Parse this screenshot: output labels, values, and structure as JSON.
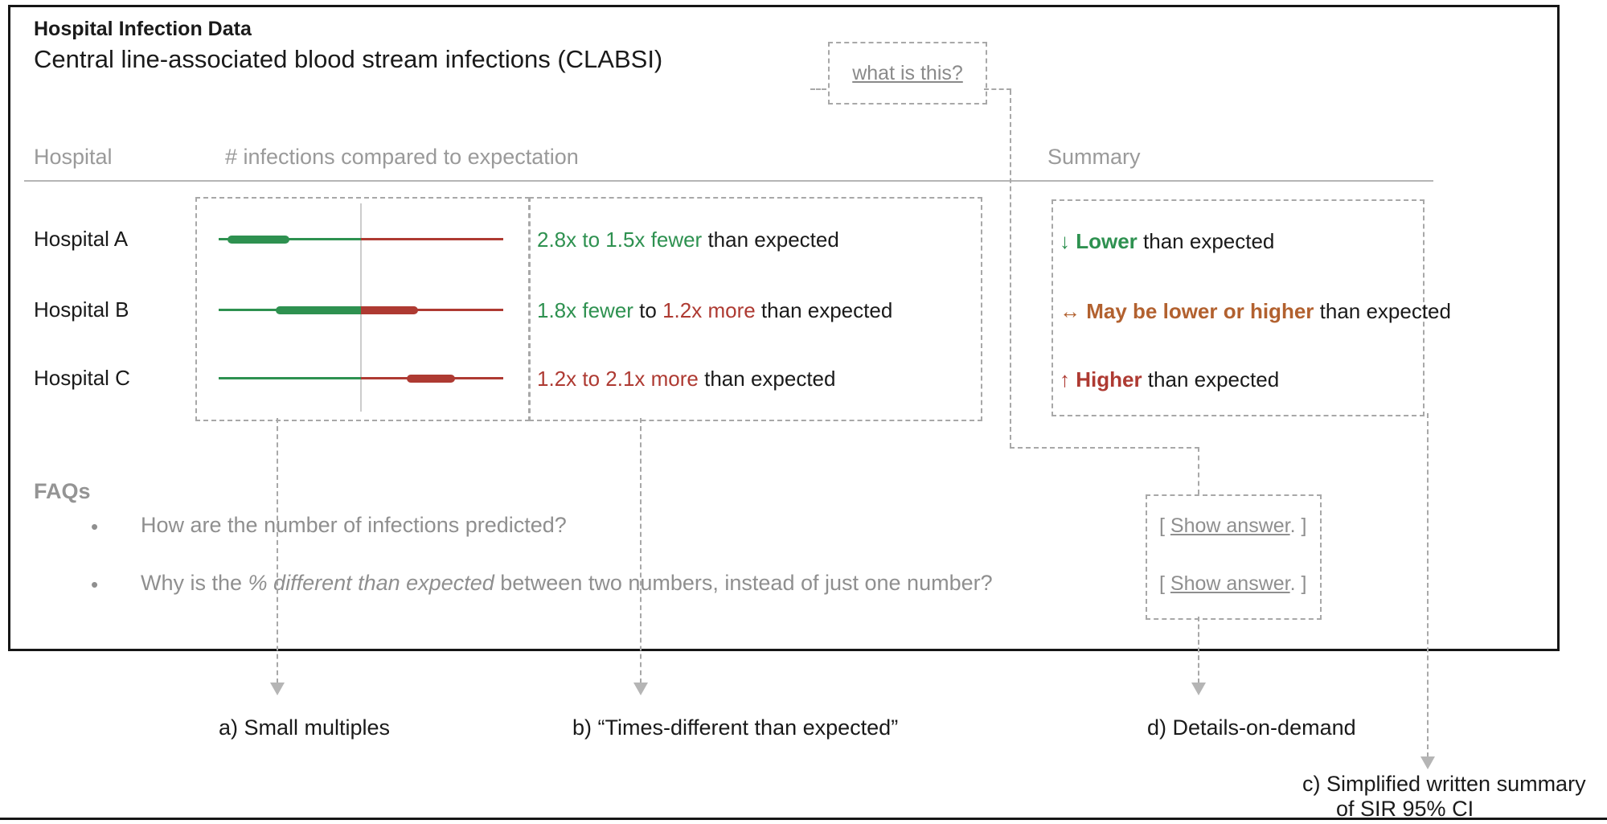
{
  "colors": {
    "green": "#2e9150",
    "red": "#ae3a32",
    "brown": "#b2612f",
    "dash_gray": "#a8a8a8",
    "header_gray": "#9a9a9a",
    "faq_gray": "#8f8f8f",
    "arrow_gray": "#b5b5b5",
    "black": "#1a1a1a"
  },
  "panel": {
    "title": "Hospital Infection Data",
    "subtitle": "Central line-associated blood stream infections (CLABSI)",
    "what_is_this_label": "what is this?"
  },
  "table": {
    "col_hospital": "Hospital",
    "col_infections": "# infections compared to expectation",
    "col_summary": "Summary"
  },
  "rows": [
    {
      "hospital": "Hospital A",
      "bar": {
        "lo": 0.03,
        "hi": 0.25
      },
      "ci_parts": {
        "p0": "2.8x to 1.5x fewer",
        "p1": " than expected"
      }
    },
    {
      "hospital": "Hospital B",
      "bar": {
        "lo": 0.2,
        "hi": 0.7
      },
      "ci_parts": {
        "p0": "1.8x fewer",
        "p1": " to ",
        "p2": "1.2x more",
        "p3": " than expected"
      }
    },
    {
      "hospital": "Hospital C",
      "bar": {
        "lo": 0.66,
        "hi": 0.83
      },
      "ci_parts": {
        "p0": "1.2x to 2.1x more",
        "p1": " than expected"
      }
    }
  ],
  "chart_data": {
    "type": "ci_dot_plot",
    "note": "horizontal CI bars; left of center vertical line = fewer than expected (green), right = more than expected (red); thin line spans full axis, thick bar is 95% CI",
    "rows": [
      {
        "hospital": "Hospital A",
        "ci": "2.8x fewer to 1.5x fewer"
      },
      {
        "hospital": "Hospital B",
        "ci": "1.8x fewer to 1.2x more"
      },
      {
        "hospital": "Hospital C",
        "ci": "1.2x more to 2.1x more"
      }
    ]
  },
  "summary": {
    "items": [
      {
        "arrow": "↓",
        "label": "Lower",
        "rest": " than expected"
      },
      {
        "arrow": "↔",
        "label": "May be lower or higher",
        "rest": " than expected"
      },
      {
        "arrow": "↑",
        "label": "Higher",
        "rest": " than expected"
      }
    ]
  },
  "faq": {
    "heading": "FAQs",
    "bullet": "•",
    "q1": "How are the number of infections predicted?",
    "q2_pre": "Why is the ",
    "q2_italic": "% different than expected",
    "q2_post": " between two numbers, instead of just one number?",
    "show_prefix": "[ ",
    "show_link": "Show answer",
    "show_suffix": ". ]"
  },
  "annotations": {
    "a": "a) Small multiples",
    "b": "b) “Times-different than expected”",
    "d": "d) Details-on-demand",
    "c_line1": "c) Simplified written summary",
    "c_line2": "of SIR 95% CI"
  }
}
